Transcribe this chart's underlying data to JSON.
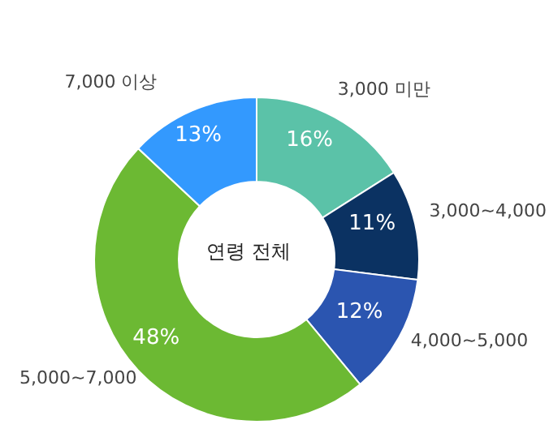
{
  "chart_data": {
    "type": "donut",
    "categories": [
      "3,000 미만",
      "3,000~4,000",
      "4,000~5,000",
      "5,000~7,000",
      "7,000 이상"
    ],
    "values": [
      16,
      11,
      12,
      48,
      13
    ],
    "value_labels": [
      "16%",
      "11%",
      "12%",
      "48%",
      "13%"
    ],
    "colors": [
      "#5bc2a8",
      "#0b3262",
      "#2b55b0",
      "#6cb933",
      "#3399fe"
    ],
    "annotations": [
      "연령 전체"
    ]
  }
}
